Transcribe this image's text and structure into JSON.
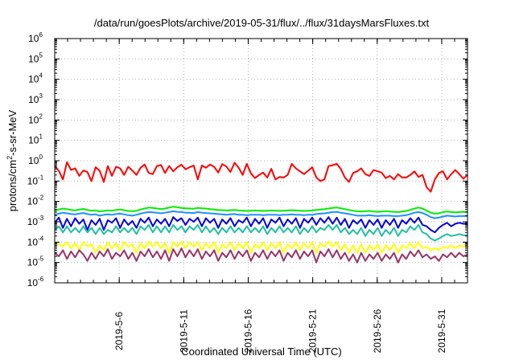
{
  "chart_data": {
    "type": "line",
    "title": "/data/run/goesPlots/archive/2019-05-31/flux/../flux/31daysMarsFluxes.txt",
    "xlabel": "Coordinated Universal Time (UTC)",
    "ylabel": "protons/cm2-s-sr-MeV",
    "ylabel_parts": {
      "base": "protons/cm",
      "sup": "2",
      "rest": "-s-sr-MeV"
    },
    "yscale": "log",
    "ylim": [
      1e-06,
      1000000.0
    ],
    "y_tick_base": "10",
    "y_tick_exponents": [
      "-6",
      "-5",
      "-4",
      "-3",
      "-2",
      "-1",
      "0",
      "1",
      "2",
      "3",
      "4",
      "5",
      "6"
    ],
    "x_range_days": [
      "2019-05-01",
      "2019-06-02"
    ],
    "x_ticks": [
      "2019-5-6",
      "2019-5-11",
      "2019-5-16",
      "2019-5-21",
      "2019-5-26",
      "2019-5-31"
    ],
    "grid": true,
    "legend": "none",
    "series": [
      {
        "color": "#ff0000",
        "values": [
          0.55,
          0.32,
          0.12,
          0.85,
          0.35,
          0.42,
          0.18,
          0.33,
          0.28,
          0.1,
          0.48,
          0.32,
          0.09,
          0.55,
          0.18,
          0.5,
          0.42,
          0.2,
          0.5,
          0.33,
          0.2,
          0.45,
          0.65,
          0.25,
          0.22,
          0.55,
          0.62,
          0.25,
          0.55,
          0.3,
          0.48,
          0.64,
          0.38,
          0.48,
          0.58,
          0.12,
          0.58,
          0.45,
          0.65,
          0.5,
          0.26,
          0.68,
          0.52,
          0.28,
          0.8,
          0.45,
          0.2,
          0.7,
          0.24,
          0.14,
          0.2,
          0.26,
          0.15,
          0.4,
          0.12,
          0.16,
          0.15,
          0.2,
          0.7,
          0.42,
          0.3,
          0.22,
          0.32,
          0.48,
          0.15,
          0.1,
          0.12,
          0.55,
          0.6,
          0.7,
          0.4,
          0.15,
          0.09,
          0.25,
          0.3,
          0.42,
          0.22,
          0.18,
          0.35,
          0.3,
          0.26,
          0.14,
          0.18,
          0.12,
          0.22,
          0.15,
          0.15,
          0.2,
          0.3,
          0.16,
          0.2,
          0.05,
          0.03,
          0.12,
          0.25,
          0.3,
          0.12,
          0.22,
          0.35,
          0.22,
          0.13,
          0.2
        ]
      },
      {
        "color": "#00ee00",
        "values": [
          0.0035,
          0.004,
          0.0045,
          0.0042,
          0.0038,
          0.0036,
          0.004,
          0.0043,
          0.0038,
          0.0035,
          0.0036,
          0.0032,
          0.0034,
          0.0036,
          0.0035,
          0.0038,
          0.004,
          0.0037,
          0.0034,
          0.0033,
          0.0035,
          0.004,
          0.0045,
          0.005,
          0.0048,
          0.0045,
          0.0042,
          0.0045,
          0.005,
          0.0055,
          0.0052,
          0.0048,
          0.0046,
          0.0045,
          0.0044,
          0.0048,
          0.0046,
          0.0045,
          0.0042,
          0.004,
          0.0038,
          0.0037,
          0.0036,
          0.0037,
          0.0038,
          0.0036,
          0.0035,
          0.0034,
          0.0035,
          0.0036,
          0.0035,
          0.0034,
          0.0035,
          0.0036,
          0.0035,
          0.0034,
          0.0035,
          0.0036,
          0.0037,
          0.0036,
          0.0035,
          0.0034,
          0.0035,
          0.0036,
          0.0038,
          0.004,
          0.0042,
          0.0045,
          0.0048,
          0.005,
          0.0046,
          0.0042,
          0.0038,
          0.0035,
          0.0033,
          0.0032,
          0.0033,
          0.0034,
          0.0032,
          0.0031,
          0.0032,
          0.0033,
          0.0032,
          0.0031,
          0.003,
          0.0032,
          0.0034,
          0.0038,
          0.0045,
          0.005,
          0.0045,
          0.0035,
          0.0028,
          0.0025,
          0.0026,
          0.003,
          0.0032,
          0.003,
          0.0029,
          0.003,
          0.0031,
          0.003
        ]
      },
      {
        "color": "#1e90ff",
        "values": [
          0.0022,
          0.0025,
          0.0028,
          0.0026,
          0.0024,
          0.0023,
          0.0025,
          0.0027,
          0.0024,
          0.0022,
          0.0023,
          0.002,
          0.0022,
          0.0023,
          0.0022,
          0.0024,
          0.0025,
          0.0023,
          0.0021,
          0.002,
          0.0022,
          0.0025,
          0.0028,
          0.003,
          0.0029,
          0.0028,
          0.0026,
          0.0028,
          0.003,
          0.0033,
          0.0031,
          0.003,
          0.0028,
          0.0028,
          0.0027,
          0.003,
          0.0028,
          0.0027,
          0.0026,
          0.0025,
          0.0024,
          0.0023,
          0.0022,
          0.0023,
          0.0024,
          0.0022,
          0.0022,
          0.0021,
          0.0022,
          0.0022,
          0.0022,
          0.0021,
          0.0022,
          0.0022,
          0.0022,
          0.0021,
          0.0022,
          0.0022,
          0.0023,
          0.0022,
          0.0022,
          0.0021,
          0.0022,
          0.0022,
          0.0024,
          0.0025,
          0.0026,
          0.0028,
          0.003,
          0.0031,
          0.0028,
          0.0026,
          0.0024,
          0.0022,
          0.002,
          0.002,
          0.002,
          0.0021,
          0.002,
          0.0019,
          0.002,
          0.002,
          0.002,
          0.0019,
          0.0019,
          0.002,
          0.0021,
          0.0024,
          0.0028,
          0.003,
          0.0027,
          0.0022,
          0.0017,
          0.0015,
          0.0016,
          0.0018,
          0.002,
          0.0019,
          0.0018,
          0.0019,
          0.0019,
          0.0019
        ]
      },
      {
        "color": "#0000dd",
        "values": [
          0.0009,
          0.0016,
          0.0005,
          0.0014,
          0.0006,
          0.0015,
          0.0008,
          0.0013,
          0.0004,
          0.0012,
          0.0007,
          0.0014,
          0.0004,
          0.0012,
          0.0009,
          0.0015,
          0.0005,
          0.0013,
          0.0007,
          0.0011,
          0.0005,
          0.0014,
          0.0009,
          0.0016,
          0.0006,
          0.0013,
          0.0008,
          0.0014,
          0.0006,
          0.0017,
          0.0011,
          0.0015,
          0.0007,
          0.0014,
          0.001,
          0.0016,
          0.0006,
          0.0015,
          0.0009,
          0.0014,
          0.0005,
          0.0013,
          0.0008,
          0.0015,
          0.0006,
          0.0012,
          0.0009,
          0.0016,
          0.0006,
          0.0014,
          0.0008,
          0.0015,
          0.0005,
          0.0013,
          0.0009,
          0.0016,
          0.0006,
          0.0013,
          0.0008,
          0.0015,
          0.0005,
          0.0014,
          0.0009,
          0.0016,
          0.0007,
          0.0015,
          0.0009,
          0.0017,
          0.0008,
          0.0016,
          0.0007,
          0.0014,
          0.0005,
          0.0012,
          0.0008,
          0.0013,
          0.0005,
          0.0012,
          0.0007,
          0.0013,
          0.0005,
          0.0012,
          0.0007,
          0.0014,
          0.0005,
          0.0012,
          0.0008,
          0.0015,
          0.0009,
          0.0016,
          0.0007,
          0.0006,
          0.0004,
          0.0003,
          0.0005,
          0.0007,
          0.0009,
          0.0006,
          0.0008,
          0.0009,
          0.0008,
          0.0008
        ]
      },
      {
        "color": "#20c0a0",
        "values": [
          0.0004,
          0.0006,
          0.0003,
          0.0006,
          0.0003,
          0.0005,
          0.0003,
          0.0006,
          0.0003,
          0.0005,
          0.00025,
          0.0005,
          0.00025,
          0.0004,
          0.0003,
          0.0006,
          0.0003,
          0.0005,
          0.0003,
          0.0005,
          0.00025,
          0.0006,
          0.0004,
          0.0007,
          0.0003,
          0.0006,
          0.0003,
          0.0006,
          0.0003,
          0.0007,
          0.0004,
          0.0006,
          0.0003,
          0.0006,
          0.0004,
          0.0007,
          0.0003,
          0.0006,
          0.0003,
          0.0005,
          0.00025,
          0.0005,
          0.0003,
          0.0006,
          0.0003,
          0.0005,
          0.0003,
          0.0006,
          0.0003,
          0.0005,
          0.0003,
          0.0006,
          0.00025,
          0.0005,
          0.0003,
          0.0006,
          0.0003,
          0.0005,
          0.0003,
          0.0006,
          0.00025,
          0.0005,
          0.0003,
          0.0006,
          0.0003,
          0.0005,
          0.0004,
          0.0007,
          0.0004,
          0.0007,
          0.0003,
          0.0005,
          0.00025,
          0.0004,
          0.00025,
          0.0005,
          0.0002,
          0.0004,
          0.00025,
          0.0005,
          0.0002,
          0.0004,
          0.00025,
          0.0005,
          0.0002,
          0.0004,
          0.0003,
          0.0006,
          0.0004,
          0.0007,
          0.0003,
          0.00025,
          0.00015,
          0.00012,
          0.00015,
          0.0002,
          0.00025,
          0.0002,
          0.00022,
          0.00025,
          0.00022,
          0.00022
        ]
      },
      {
        "color": "#ffff00",
        "values": [
          0.0001,
          8e-05,
          6e-05,
          0.0001,
          5e-05,
          9e-05,
          4e-05,
          0.0001,
          6e-05,
          8e-05,
          3e-05,
          7e-05,
          4e-05,
          0.0001,
          5e-05,
          9e-05,
          4e-05,
          0.0001,
          6e-05,
          8e-05,
          3e-05,
          9e-05,
          5e-05,
          0.00011,
          6e-05,
          0.0001,
          5e-05,
          9e-05,
          3e-05,
          0.0001,
          6e-05,
          0.00011,
          5e-05,
          0.0001,
          6e-05,
          0.0001,
          4e-05,
          9e-05,
          5e-05,
          0.0001,
          3e-05,
          8e-05,
          5e-05,
          0.0001,
          4e-05,
          9e-05,
          5e-05,
          0.0001,
          3e-05,
          8e-05,
          5e-05,
          0.0001,
          4e-05,
          9e-05,
          5e-05,
          0.0001,
          3e-05,
          8e-05,
          5e-05,
          0.0001,
          4e-05,
          9e-05,
          5e-05,
          0.0001,
          3e-05,
          9e-05,
          6e-05,
          0.00011,
          6e-05,
          0.0001,
          4e-05,
          8e-05,
          3e-05,
          7e-05,
          3e-05,
          8e-05,
          3e-05,
          7e-05,
          4e-05,
          8e-05,
          3e-05,
          7e-05,
          4e-05,
          8e-05,
          3e-05,
          7e-05,
          5e-05,
          9e-05,
          5e-05,
          0.0001,
          5e-05,
          6e-05,
          4e-05,
          5e-05,
          4e-05,
          6e-05,
          5e-05,
          7e-05,
          5e-05,
          7e-05,
          6e-05,
          7e-05
        ]
      },
      {
        "color": "#993366",
        "values": [
          3e-05,
          2e-05,
          4e-05,
          1.5e-05,
          3.5e-05,
          1.8e-05,
          4e-05,
          2.5e-05,
          1.2e-05,
          3e-05,
          1.5e-05,
          3.5e-05,
          2e-05,
          4.5e-05,
          1.5e-05,
          3e-05,
          2e-05,
          4e-05,
          1.5e-05,
          3e-05,
          1.2e-05,
          3.5e-05,
          2e-05,
          4.5e-05,
          1.8e-05,
          3.5e-05,
          1.5e-05,
          4e-05,
          1.2e-05,
          4.5e-05,
          2e-05,
          5e-05,
          1.8e-05,
          4e-05,
          2e-05,
          4.5e-05,
          1.5e-05,
          3.5e-05,
          2e-05,
          4e-05,
          1.2e-05,
          3e-05,
          1.8e-05,
          4e-05,
          1.5e-05,
          3.5e-05,
          2e-05,
          4e-05,
          1.2e-05,
          3e-05,
          1.8e-05,
          4e-05,
          1.5e-05,
          3.5e-05,
          2e-05,
          4e-05,
          1.2e-05,
          3e-05,
          1.8e-05,
          4e-05,
          1.5e-05,
          3.5e-05,
          2e-05,
          4e-05,
          1e-05,
          3.5e-05,
          2e-05,
          4.5e-05,
          1.8e-05,
          4e-05,
          1.5e-05,
          3e-05,
          1.2e-05,
          2.5e-05,
          1e-05,
          3e-05,
          1.2e-05,
          2.5e-05,
          1.5e-05,
          3e-05,
          1.2e-05,
          2.5e-05,
          1.5e-05,
          3e-05,
          1e-05,
          2.5e-05,
          1.5e-05,
          3.5e-05,
          2e-05,
          4e-05,
          1.8e-05,
          2.5e-05,
          1.5e-05,
          2e-05,
          1.2e-05,
          2.5e-05,
          1.8e-05,
          3e-05,
          1.8e-05,
          3e-05,
          2e-05,
          2.5e-05
        ]
      }
    ]
  }
}
